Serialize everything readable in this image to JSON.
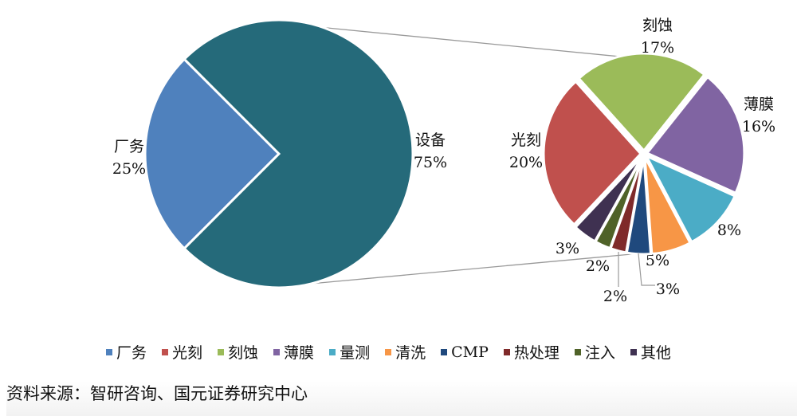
{
  "chart_data": {
    "type": "pie-of-pie",
    "primary": {
      "slices": [
        {
          "name": "厂务",
          "value": 25,
          "label": "25%",
          "color": "#4F81BD"
        },
        {
          "name": "设备",
          "value": 75,
          "label": "75%",
          "color": "#256A7A"
        }
      ]
    },
    "secondary": {
      "parent": "设备",
      "slices": [
        {
          "name": "刻蚀",
          "value": 17,
          "label": "17%",
          "color": "#9BBB59",
          "show_name": true
        },
        {
          "name": "薄膜",
          "value": 16,
          "label": "16%",
          "color": "#8064A2",
          "show_name": true
        },
        {
          "name": "量测",
          "value": 8,
          "label": "8%",
          "color": "#4BACC6",
          "show_name": false
        },
        {
          "name": "清洗",
          "value": 5,
          "label": "5%",
          "color": "#F79646",
          "show_name": false
        },
        {
          "name": "CMP",
          "value": 3,
          "label": "3%",
          "color": "#1F497D",
          "show_name": false
        },
        {
          "name": "热处理",
          "value": 2,
          "label": "2%",
          "color": "#7F2A2A",
          "show_name": false
        },
        {
          "name": "注入",
          "value": 2,
          "label": "2%",
          "color": "#4F6228",
          "show_name": false
        },
        {
          "name": "其他",
          "value": 3,
          "label": "3%",
          "color": "#3F3151",
          "show_name": false
        },
        {
          "name": "光刻",
          "value": 20,
          "label": "20%",
          "color": "#C0504D",
          "show_name": true
        }
      ]
    },
    "legend": {
      "position": "bottom",
      "entries": [
        {
          "name": "厂务",
          "color": "#4F81BD"
        },
        {
          "name": "光刻",
          "color": "#C0504D"
        },
        {
          "name": "刻蚀",
          "color": "#9BBB59"
        },
        {
          "name": "薄膜",
          "color": "#8064A2"
        },
        {
          "name": "量测",
          "color": "#4BACC6"
        },
        {
          "name": "清洗",
          "color": "#F79646"
        },
        {
          "name": "CMP",
          "color": "#1F497D"
        },
        {
          "name": "热处理",
          "color": "#7F2A2A"
        },
        {
          "name": "注入",
          "color": "#4F6228"
        },
        {
          "name": "其他",
          "color": "#3F3151"
        }
      ]
    }
  },
  "source": "资料来源：智研咨询、国元证券研究中心"
}
